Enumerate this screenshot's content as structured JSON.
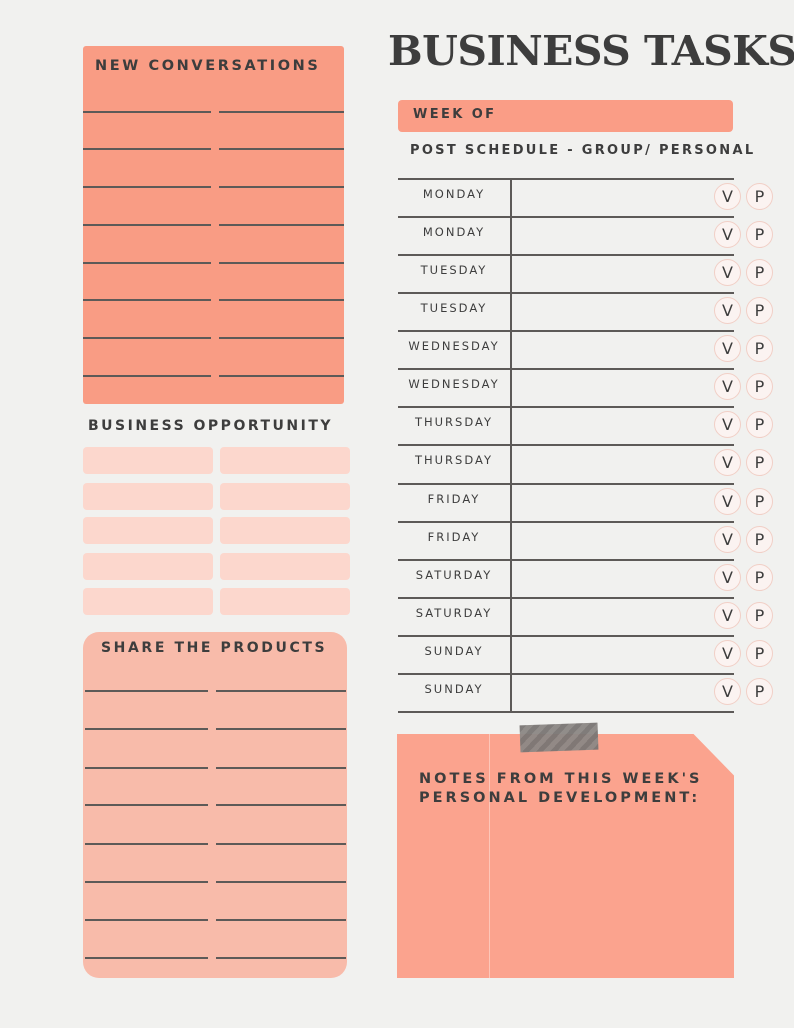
{
  "title": "BUSINESS TASKS",
  "new_conversations": {
    "label": "NEW CONVERSATIONS"
  },
  "business_opportunity": {
    "label": "BUSINESS OPPORTUNITY"
  },
  "share_products": {
    "label": "SHARE THE PRODUCTS"
  },
  "week_of": {
    "label": "WEEK OF"
  },
  "post_schedule": {
    "label": "POST SCHEDULE - GROUP/ PERSONAL"
  },
  "schedule": {
    "days": [
      "MONDAY",
      "MONDAY",
      "TUESDAY",
      "TUESDAY",
      "WEDNESDAY",
      "WEDNESDAY",
      "THURSDAY",
      "THURSDAY",
      "FRIDAY",
      "FRIDAY",
      "SATURDAY",
      "SATURDAY",
      "SUNDAY",
      "SUNDAY"
    ],
    "badge_v": "V",
    "badge_p": "P"
  },
  "notes": {
    "label_line1": "NOTES FROM THIS WEEK'S",
    "label_line2": "PERSONAL DEVELOPMENT:"
  },
  "colors": {
    "coral": "#f99c84",
    "light_coral": "#f8bbaa",
    "pale_coral": "#fcd7cd",
    "text": "#3d3d3d",
    "rule": "#5d5a58"
  }
}
